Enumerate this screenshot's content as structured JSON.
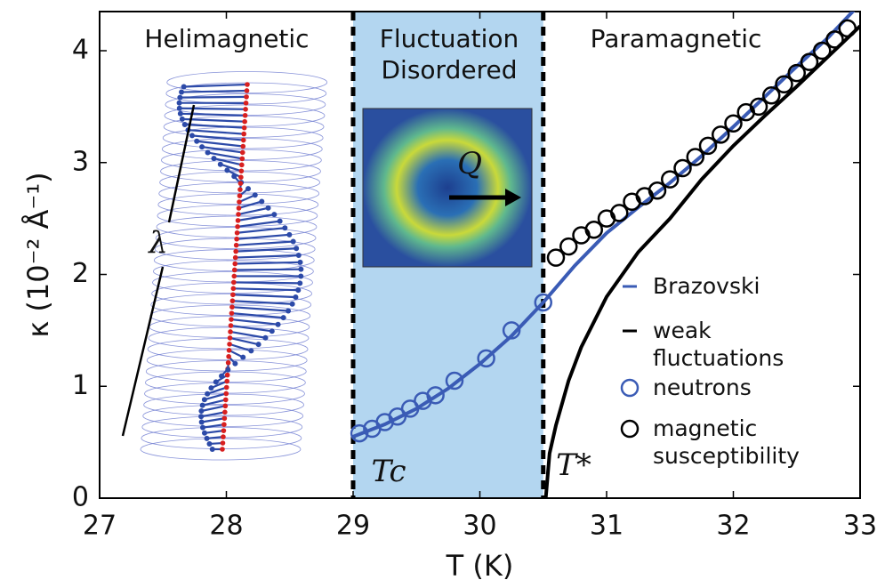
{
  "chart_data": {
    "type": "line",
    "xlabel": "T (K)",
    "ylabel": "κ (10⁻² Å⁻¹)",
    "xlim": [
      27,
      33
    ],
    "ylim": [
      0,
      4.35
    ],
    "xticks": [
      27,
      28,
      29,
      30,
      31,
      32,
      33
    ],
    "yticks": [
      0,
      1,
      2,
      3,
      4
    ],
    "vlines": [
      29,
      30.5
    ],
    "region_color": "#b3d6f0",
    "annotations": [
      "Helimagnetic",
      "Fluctuation",
      "Disordered",
      "Paramagnetic",
      "Tc",
      "T*",
      "λ",
      "Q"
    ],
    "series": [
      {
        "name": "Brazovski",
        "type": "line",
        "color": "#3a5bb5",
        "x": [
          29,
          29.25,
          29.5,
          29.75,
          30,
          30.25,
          30.5,
          30.75,
          31,
          31.25,
          31.5,
          31.75,
          32,
          32.25,
          32.5,
          32.75,
          32.95
        ],
        "values": [
          0.55,
          0.66,
          0.8,
          0.98,
          1.2,
          1.45,
          1.75,
          2.08,
          2.37,
          2.6,
          2.82,
          3.06,
          3.32,
          3.59,
          3.86,
          4.12,
          4.36
        ]
      },
      {
        "name": "weak fluctuations",
        "type": "line",
        "color": "#000000",
        "x": [
          30.52,
          30.55,
          30.6,
          30.7,
          30.8,
          31,
          31.25,
          31.5,
          31.75,
          32,
          32.25,
          32.5,
          32.75,
          33
        ],
        "values": [
          0,
          0.4,
          0.65,
          1.05,
          1.35,
          1.8,
          2.2,
          2.5,
          2.85,
          3.15,
          3.42,
          3.68,
          3.95,
          4.22
        ]
      },
      {
        "name": "neutrons",
        "type": "scatter",
        "color": "#3a5bb5",
        "x": [
          29.05,
          29.15,
          29.25,
          29.35,
          29.45,
          29.55,
          29.65,
          29.8,
          30.05,
          30.25,
          30.5
        ],
        "values": [
          0.58,
          0.62,
          0.68,
          0.73,
          0.8,
          0.87,
          0.92,
          1.05,
          1.25,
          1.5,
          1.75
        ]
      },
      {
        "name": "magnetic susceptibility",
        "type": "scatter",
        "color": "#000000",
        "x": [
          30.6,
          30.7,
          30.8,
          30.9,
          31.0,
          31.1,
          31.2,
          31.3,
          31.4,
          31.5,
          31.6,
          31.7,
          31.8,
          31.9,
          32.0,
          32.1,
          32.2,
          32.3,
          32.4,
          32.5,
          32.6,
          32.7,
          32.8,
          32.9
        ],
        "values": [
          2.15,
          2.25,
          2.35,
          2.4,
          2.5,
          2.55,
          2.65,
          2.7,
          2.75,
          2.85,
          2.95,
          3.05,
          3.15,
          3.25,
          3.35,
          3.45,
          3.5,
          3.6,
          3.7,
          3.8,
          3.9,
          4.0,
          4.1,
          4.2
        ]
      }
    ]
  }
}
